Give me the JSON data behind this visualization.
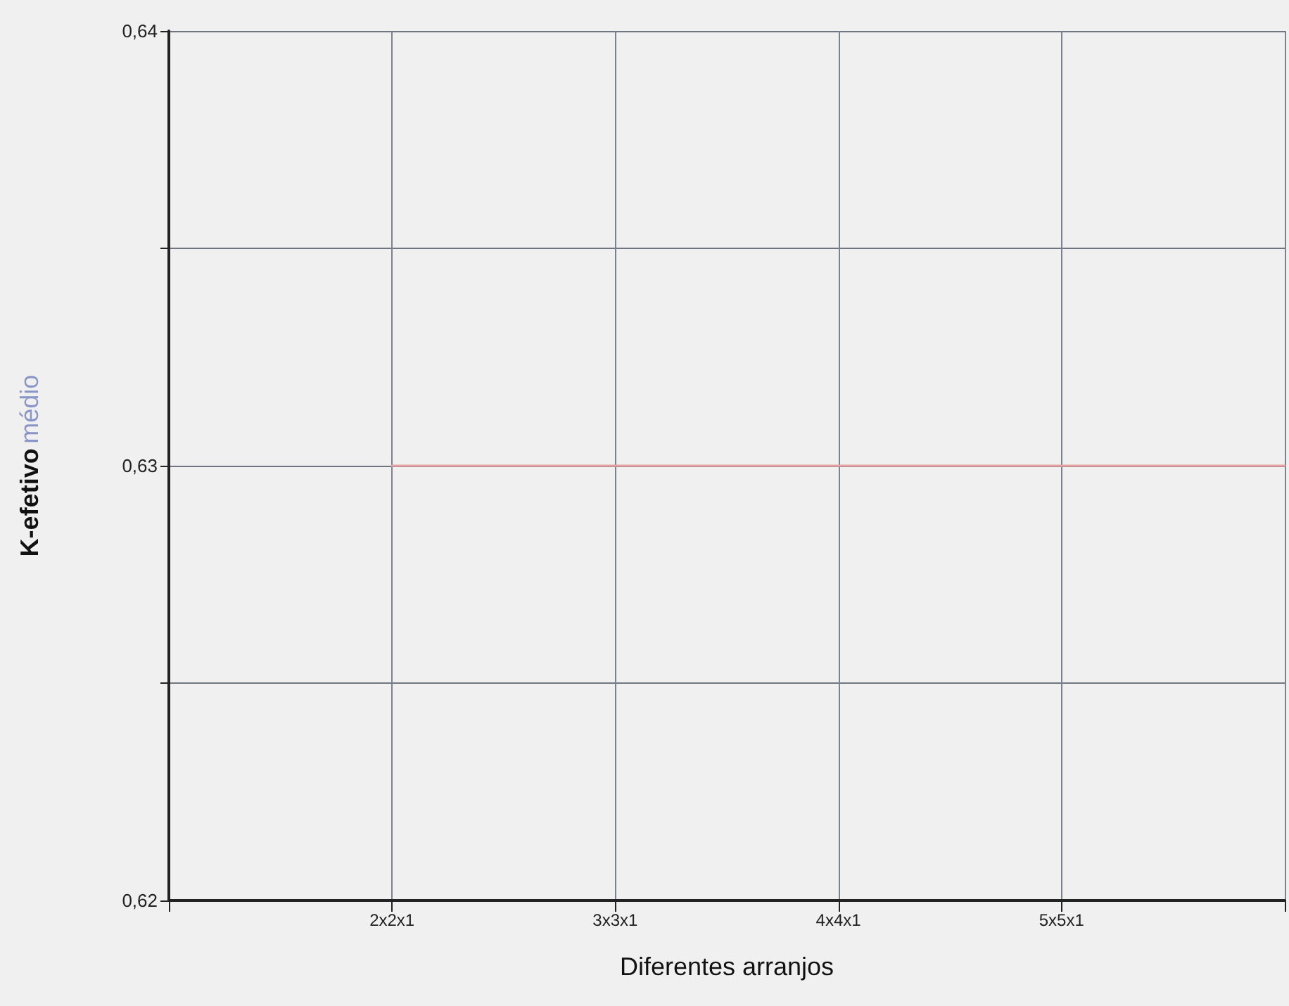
{
  "chart_data": {
    "type": "line",
    "xlabel": "Diferentes arranjos",
    "ylabel": "K-efetivo médio",
    "categories": [
      null,
      "2x2x1",
      "3x3x1",
      "4x4x1",
      "5x5x1",
      null
    ],
    "series": [
      {
        "color": "#e8a0a0",
        "values": [
          null,
          0.63,
          0.63,
          0.63,
          0.63,
          0.63
        ]
      }
    ],
    "ylim": [
      0.62,
      0.64
    ],
    "yticks": [
      {
        "value": 0.62,
        "label": "0,62"
      },
      {
        "value": 0.625,
        "label": null
      },
      {
        "value": 0.63,
        "label": "0,63"
      },
      {
        "value": 0.635,
        "label": null
      },
      {
        "value": 0.64,
        "label": "0,64"
      }
    ],
    "grid": true,
    "marker": "none",
    "line_style": "solid"
  }
}
